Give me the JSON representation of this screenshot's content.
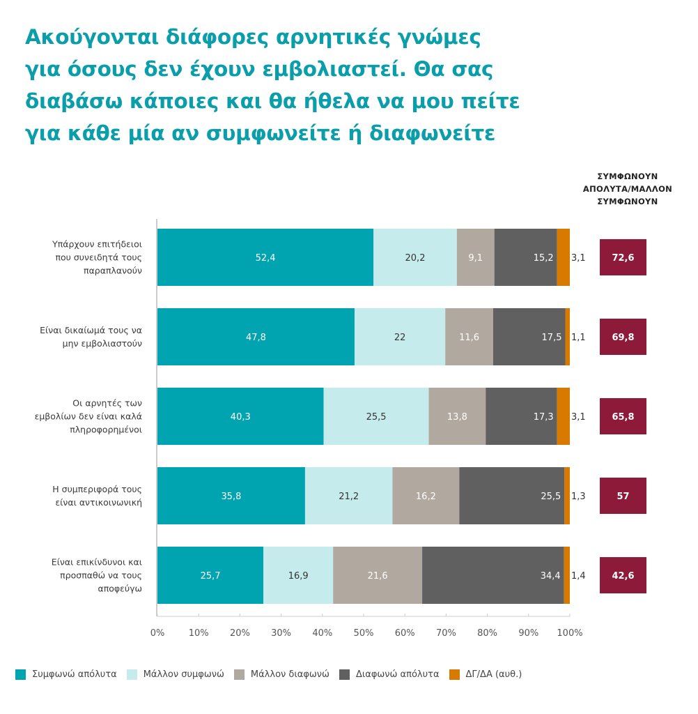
{
  "title_lines": [
    "Ακούγονται διάφορες αρνητικές γνώμες",
    "για όσους δεν έχουν εμβολιαστεί. Θα σας",
    "διαβάσω κάποιες και θα ήθελα να μου πείτε",
    "για κάθε μία αν συμφωνείτε ή διαφωνείτε"
  ],
  "total_header_lines": [
    "ΣΥΜΦΩΝΟΥΝ",
    "ΑΠΟΛΥΤΑ/ΜΑΛΛΟΝ",
    "ΣΥΜΦΩΝΟΥΝ"
  ],
  "colors": {
    "title": "#0a9eaa",
    "total_box": "#8e1a3a",
    "axis": "#cccccc"
  },
  "chart_data": {
    "type": "bar",
    "orientation": "horizontal",
    "stacked": true,
    "title": "Ακούγονται διάφορες αρνητικές γνώμες για όσους δεν έχουν εμβολιαστεί. Θα σας διαβάσω κάποιες και θα ήθελα να μου πείτε για κάθε μία αν συμφωνείτε ή διαφωνείτε",
    "xlabel": "",
    "ylabel": "",
    "xlim": [
      0,
      100
    ],
    "x_ticks": [
      "0%",
      "10%",
      "20%",
      "30%",
      "40%",
      "50%",
      "60%",
      "70%",
      "80%",
      "90%",
      "100%"
    ],
    "grid": false,
    "legend_position": "bottom",
    "categories": [
      [
        "Υπάρχουν επιτήδειοι",
        "που συνειδητά τους",
        "παραπλανούν"
      ],
      [
        "Είναι δικαίωμά τους να",
        "μην εμβολιαστούν"
      ],
      [
        "Οι αρνητές των",
        "εμβολίων δεν είναι καλά",
        "πληροφορημένοι"
      ],
      [
        "Η συμπεριφορά τους",
        "είναι αντικοινωνική"
      ],
      [
        "Είναι επικίνδυνοι και",
        "προσπαθώ να τους",
        "αποφεύγω"
      ]
    ],
    "series": [
      {
        "name": "Συμφωνώ απόλυτα",
        "color": "#00a3b0",
        "label_color": "#ffffff",
        "label_align": "center",
        "values": [
          52.4,
          47.8,
          40.3,
          35.8,
          25.7
        ],
        "labels": [
          "52,4",
          "47,8",
          "40,3",
          "35,8",
          "25,7"
        ]
      },
      {
        "name": "Μάλλον συμφωνώ",
        "color": "#c5ebec",
        "label_color": "#333333",
        "label_align": "center",
        "values": [
          20.2,
          22,
          25.5,
          21.2,
          16.9
        ],
        "labels": [
          "20,2",
          "22",
          "25,5",
          "21,2",
          "16,9"
        ]
      },
      {
        "name": "Μάλλον διαφωνώ",
        "color": "#b1a8a0",
        "label_color": "#ffffff",
        "label_align": "center",
        "values": [
          9.1,
          11.6,
          13.8,
          16.2,
          21.6
        ],
        "labels": [
          "9,1",
          "11,6",
          "13,8",
          "16,2",
          "21,6"
        ]
      },
      {
        "name": "Διαφωνώ απόλυτα",
        "color": "#606060",
        "label_color": "#ffffff",
        "label_align": "end",
        "values": [
          15.2,
          17.5,
          17.3,
          25.5,
          34.4
        ],
        "labels": [
          "15,2",
          "17,5",
          "17,3",
          "25,5",
          "34,4"
        ]
      },
      {
        "name": "ΔΓ/ΔΑ (αυθ.)",
        "color": "#d97a00",
        "label_color": "#333333",
        "label_align": "outside",
        "values": [
          3.1,
          1.1,
          3.1,
          1.3,
          1.4
        ],
        "labels": [
          "3,1",
          "1,1",
          "3,1",
          "1,3",
          "1,4"
        ]
      }
    ],
    "totals": {
      "header": "ΣΥΜΦΩΝΟΥΝ ΑΠΟΛΥΤΑ/ΜΑΛΛΟΝ ΣΥΜΦΩΝΟΥΝ",
      "values": [
        72.6,
        69.8,
        65.8,
        57,
        42.6
      ],
      "labels": [
        "72,6",
        "69,8",
        "65,8",
        "57",
        "42,6"
      ]
    }
  }
}
